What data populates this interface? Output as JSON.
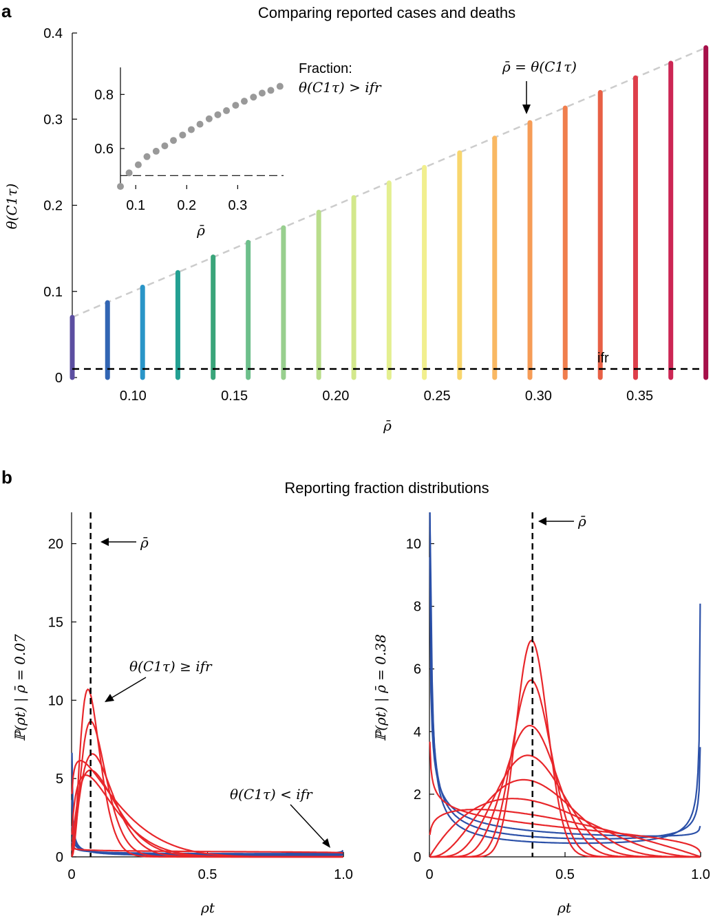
{
  "panel_a": {
    "letter": "a",
    "chart_data": {
      "type": "scatter",
      "title": "Comparing reported cases and deaths",
      "xlabel": "ρ̄",
      "ylabel": "θ(C1τ)",
      "xlim": [
        0.07,
        0.38
      ],
      "ylim": [
        0,
        0.4
      ],
      "x_ticks": [
        "0.10",
        "0.15",
        "0.20",
        "0.25",
        "0.30",
        "0.35"
      ],
      "y_ticks": [
        "0",
        "0.1",
        "0.2",
        "0.3",
        "0.4"
      ],
      "x": [
        0.07,
        0.0874,
        0.1047,
        0.1221,
        0.1395,
        0.1568,
        0.1742,
        0.1916,
        0.2089,
        0.2263,
        0.2437,
        0.2611,
        0.2784,
        0.2958,
        0.3132,
        0.3305,
        0.3479,
        0.3653,
        0.3826
      ],
      "y_top": [
        0.07,
        0.087,
        0.105,
        0.122,
        0.14,
        0.157,
        0.174,
        0.192,
        0.209,
        0.226,
        0.244,
        0.261,
        0.278,
        0.296,
        0.313,
        0.331,
        0.348,
        0.365,
        0.383
      ],
      "y_bottom": 0,
      "colors": [
        "#5c4fa1",
        "#3265b3",
        "#2a95c8",
        "#23a092",
        "#3aa57a",
        "#6dbf8b",
        "#98cf8e",
        "#b9dd8c",
        "#d3e88c",
        "#e4ef90",
        "#f1ef8e",
        "#f8d66e",
        "#f9b863",
        "#f69c57",
        "#f07e4d",
        "#e86045",
        "#de3f4b",
        "#cc2654",
        "#a6104a"
      ],
      "reference_line": {
        "label": "ρ̄ = θ(C1τ)",
        "color": "#cccccc"
      },
      "ifr": {
        "label": "ifr",
        "value": 0.01
      },
      "inset": {
        "type": "scatter",
        "label": "Fraction:",
        "label2": "θ(C1τ) > ifr",
        "xlabel": "ρ̄",
        "x_ticks": [
          "0.1",
          "0.2",
          "0.3"
        ],
        "y_ticks": [
          "0.6",
          "0.8"
        ],
        "xlim": [
          0.07,
          0.39
        ],
        "ylim": [
          0.45,
          0.9
        ],
        "x": [
          0.07,
          0.087,
          0.105,
          0.122,
          0.14,
          0.157,
          0.174,
          0.192,
          0.209,
          0.226,
          0.244,
          0.261,
          0.278,
          0.296,
          0.313,
          0.331,
          0.348,
          0.365,
          0.383
        ],
        "y": [
          0.46,
          0.51,
          0.54,
          0.57,
          0.59,
          0.61,
          0.63,
          0.65,
          0.67,
          0.69,
          0.71,
          0.725,
          0.74,
          0.76,
          0.775,
          0.79,
          0.805,
          0.815,
          0.83
        ],
        "reference_y": 0.5,
        "color": "#999999"
      }
    }
  },
  "panel_b": {
    "letter": "b",
    "title": "Reporting fraction distributions",
    "plots": [
      {
        "type": "line",
        "xlabel": "ρt",
        "ylabel": "ℙ(ρt) | ρ̄ = 0.07",
        "xlim": [
          0,
          1
        ],
        "ylim": [
          0,
          22
        ],
        "x_ticks": [
          "0",
          "0.5",
          "1.0"
        ],
        "y_ticks": [
          "0",
          "5",
          "10",
          "15",
          "20"
        ],
        "mean": 0.07,
        "mean_label": "ρ̄",
        "annotation_red": "θ(C1τ) ≥ ifr",
        "annotation_blue": "θ(C1τ) < ifr",
        "blue_series": [
          {
            "name": "blue-1",
            "a": 0.21,
            "b": 0.79,
            "scale": 0.2
          },
          {
            "name": "blue-2",
            "a": 0.38,
            "b": 0.8,
            "scale": 0.19
          },
          {
            "name": "blue-3",
            "a": 0.55,
            "b": 0.82,
            "scale": 0.22
          },
          {
            "name": "blue-4",
            "a": 0.72,
            "b": 0.85,
            "scale": 0.25
          }
        ],
        "red_series": [
          {
            "name": "red-1",
            "a": 0.9,
            "b": 1.05,
            "scale": 0.35
          },
          {
            "name": "red-2",
            "a": 1.2,
            "b": 7,
            "scale": 1.3
          },
          {
            "name": "red-3",
            "a": 1.5,
            "b": 10,
            "scale": 1
          },
          {
            "name": "red-4",
            "a": 1.9,
            "b": 13,
            "scale": 1
          },
          {
            "name": "red-5",
            "a": 2.5,
            "b": 19,
            "scale": 1
          },
          {
            "name": "red-6",
            "a": 3.2,
            "b": 30,
            "scale": 1
          },
          {
            "name": "red-7",
            "a": 3.5,
            "b": 40,
            "scale": 1
          }
        ],
        "blue_color": "#2b50a8",
        "red_color": "#e8262a"
      },
      {
        "type": "line",
        "xlabel": "ρt",
        "ylabel": "ℙ(ρt) | ρ̄ = 0.38",
        "xlim": [
          0,
          1
        ],
        "ylim": [
          0,
          11
        ],
        "x_ticks": [
          "0",
          "0.5",
          "1.0"
        ],
        "y_ticks": [
          "0",
          "2",
          "4",
          "6",
          "8",
          "10"
        ],
        "mean": 0.38,
        "mean_label": "ρ̄",
        "blue_series": [
          {
            "name": "blue-1",
            "a": 0.25,
            "b": 0.41
          },
          {
            "name": "blue-2",
            "a": 0.38,
            "b": 0.62
          },
          {
            "name": "blue-3",
            "a": 0.55,
            "b": 0.9
          }
        ],
        "red_series": [
          {
            "name": "red-1",
            "a": 1.2,
            "b": 1.96
          },
          {
            "name": "red-2",
            "a": 2,
            "b": 3.26
          },
          {
            "name": "red-3",
            "a": 3.5,
            "b": 5.7
          },
          {
            "name": "red-4",
            "a": 6,
            "b": 9.8
          },
          {
            "name": "red-5",
            "a": 10,
            "b": 16.3
          },
          {
            "name": "red-6",
            "a": 18,
            "b": 29.4
          },
          {
            "name": "red-7",
            "a": 27,
            "b": 44
          },
          {
            "name": "red-8",
            "a": 0.8,
            "b": 1.3
          }
        ],
        "blue_color": "#2b50a8",
        "red_color": "#e8262a"
      }
    ]
  }
}
